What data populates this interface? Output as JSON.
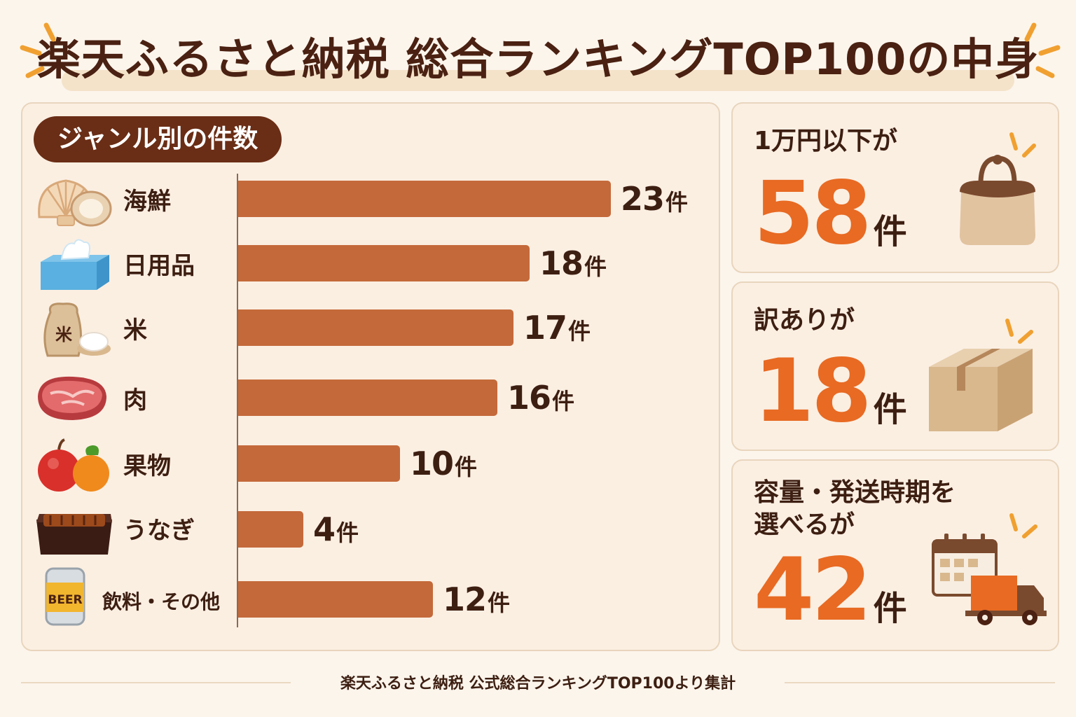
{
  "header": {
    "title": "楽天ふるさと納税 総合ランキングTOP100の中身"
  },
  "genre": {
    "title": "ジャンル別の件数",
    "unit": "件"
  },
  "chart_data": {
    "type": "bar",
    "orientation": "horizontal",
    "title": "ジャンル別の件数",
    "categories": [
      "海鮮",
      "日用品",
      "米",
      "肉",
      "果物",
      "うなぎ",
      "飲料・その他"
    ],
    "values": [
      23,
      18,
      17,
      16,
      10,
      4,
      12
    ],
    "unit": "件",
    "xlim": [
      0,
      23
    ],
    "bar_color": "#c4693a",
    "grid": false,
    "legend": "none"
  },
  "icons": [
    "scallop-shell-icon",
    "tissue-box-icon",
    "rice-bag-icon",
    "steak-icon",
    "fruit-icon",
    "unagi-box-icon",
    "beer-can-icon"
  ],
  "icon_text": {
    "rice": "米",
    "beer": "BEER"
  },
  "stats": [
    {
      "label_lines": [
        "1万円以下が"
      ],
      "value": "58",
      "unit": "件",
      "icon": "handbag-icon"
    },
    {
      "label_lines": [
        "訳ありが"
      ],
      "value": "18",
      "unit": "件",
      "icon": "cardboard-box-icon"
    },
    {
      "label_lines": [
        "容量・発送時期を",
        "選べるが"
      ],
      "value": "42",
      "unit": "件",
      "icon": "calendar-truck-icon"
    }
  ],
  "footer": {
    "source": "楽天ふるさと納税 公式総合ランキングTOP100より集計"
  },
  "colors": {
    "accent": "#e86a23",
    "bar": "#c4693a",
    "dark_brown": "#4a2112",
    "background": "#fcf5ec"
  }
}
